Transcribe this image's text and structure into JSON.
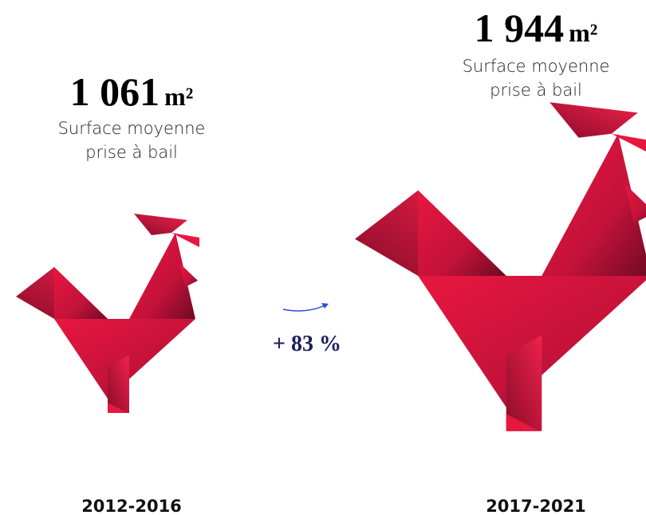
{
  "left": {
    "value": "1 061",
    "unit": "m²",
    "caption": [
      "Surface moyenne",
      "prise à bail"
    ],
    "period": "2012-2016"
  },
  "right": {
    "value": "1 944",
    "unit": "m²",
    "caption": [
      "Surface moyenne",
      "prise à bail"
    ],
    "period": "2017-2021"
  },
  "change": "+ 83 %"
}
